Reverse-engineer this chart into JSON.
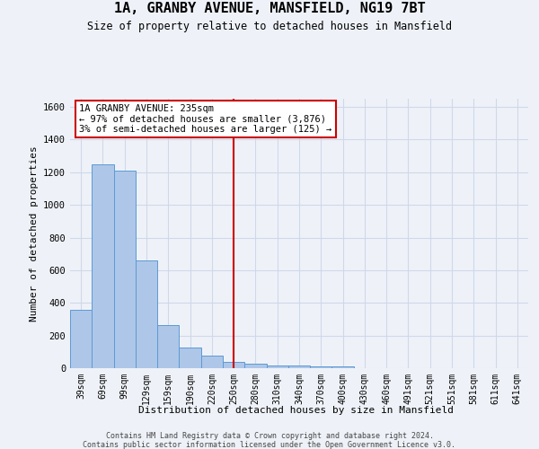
{
  "title": "1A, GRANBY AVENUE, MANSFIELD, NG19 7BT",
  "subtitle": "Size of property relative to detached houses in Mansfield",
  "xlabel": "Distribution of detached houses by size in Mansfield",
  "ylabel": "Number of detached properties",
  "footer_line1": "Contains HM Land Registry data © Crown copyright and database right 2024.",
  "footer_line2": "Contains public sector information licensed under the Open Government Licence v3.0.",
  "bar_labels": [
    "39sqm",
    "69sqm",
    "99sqm",
    "129sqm",
    "159sqm",
    "190sqm",
    "220sqm",
    "250sqm",
    "280sqm",
    "310sqm",
    "340sqm",
    "370sqm",
    "400sqm",
    "430sqm",
    "460sqm",
    "491sqm",
    "521sqm",
    "551sqm",
    "581sqm",
    "611sqm",
    "641sqm"
  ],
  "bar_values": [
    360,
    1250,
    1210,
    660,
    265,
    125,
    75,
    37,
    25,
    18,
    14,
    12,
    13,
    0,
    0,
    0,
    0,
    0,
    0,
    0,
    0
  ],
  "bar_color": "#aec6e8",
  "bar_edge_color": "#5b9bd5",
  "grid_color": "#d0d8e8",
  "background_color": "#eef2f8",
  "vline_x": 7.0,
  "vline_color": "#cc0000",
  "annotation_line1": "1A GRANBY AVENUE: 235sqm",
  "annotation_line2": "← 97% of detached houses are smaller (3,876)",
  "annotation_line3": "3% of semi-detached houses are larger (125) →",
  "annotation_box_color": "#ffffff",
  "annotation_box_edge": "#cc0000",
  "ylim": [
    0,
    1650
  ],
  "yticks": [
    0,
    200,
    400,
    600,
    800,
    1000,
    1200,
    1400,
    1600
  ]
}
